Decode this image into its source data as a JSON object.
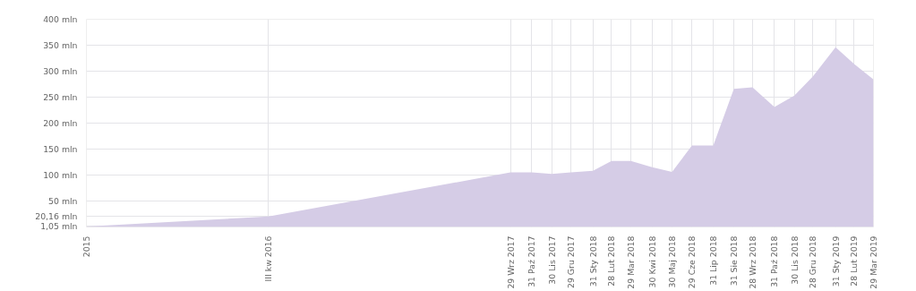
{
  "chart_data": {
    "type": "area",
    "x": [
      "2015-12-31",
      "2016-09-30",
      "2017-09-29",
      "2017-10-31",
      "2017-11-30",
      "2017-12-29",
      "2018-01-31",
      "2018-02-28",
      "2018-03-29",
      "2018-04-30",
      "2018-05-30",
      "2018-06-29",
      "2018-07-31",
      "2018-08-31",
      "2018-09-28",
      "2018-10-31",
      "2018-11-30",
      "2018-12-28",
      "2019-01-31",
      "2019-02-28",
      "2019-03-29"
    ],
    "series": [
      {
        "color": "#d5cce6",
        "values": [
          1.05,
          20.16,
          105,
          105,
          102,
          105,
          108,
          127,
          127,
          115,
          106,
          157,
          157,
          266,
          269,
          231,
          253,
          290,
          346,
          314,
          284
        ]
      }
    ],
    "xlim": [
      "2015-12-31",
      "2019-03-29"
    ],
    "xticks": [
      {
        "value": "2015-12-31",
        "label": "2015"
      },
      {
        "value": "2016-09-30",
        "label": "III kw 2016"
      },
      {
        "value": "2017-09-29",
        "label": "29 Wrz 2017"
      },
      {
        "value": "2017-10-31",
        "label": "31 Paź 2017"
      },
      {
        "value": "2017-11-30",
        "label": "30 Lis 2017"
      },
      {
        "value": "2017-12-29",
        "label": "29 Gru 2017"
      },
      {
        "value": "2018-01-31",
        "label": "31 Sty 2018"
      },
      {
        "value": "2018-02-28",
        "label": "28 Lut 2018"
      },
      {
        "value": "2018-03-29",
        "label": "29 Mar 2018"
      },
      {
        "value": "2018-04-30",
        "label": "30 Kwi 2018"
      },
      {
        "value": "2018-05-30",
        "label": "30 Maj 2018"
      },
      {
        "value": "2018-06-29",
        "label": "29 Cze 2018"
      },
      {
        "value": "2018-07-31",
        "label": "31 Lip 2018"
      },
      {
        "value": "2018-08-31",
        "label": "31 Sie 2018"
      },
      {
        "value": "2018-09-28",
        "label": "28 Wrz 2018"
      },
      {
        "value": "2018-10-31",
        "label": "31 Paź 2018"
      },
      {
        "value": "2018-11-30",
        "label": "30 Lis 2018"
      },
      {
        "value": "2018-12-28",
        "label": "28 Gru 2018"
      },
      {
        "value": "2019-01-31",
        "label": "31 Sty 2019"
      },
      {
        "value": "2019-02-28",
        "label": "28 Lut 2019"
      },
      {
        "value": "2019-03-29",
        "label": "29 Mar 2019"
      }
    ],
    "ylim": [
      0,
      400
    ],
    "yticks": [
      {
        "value": 1.05,
        "label": "1,05 mln"
      },
      {
        "value": 20.16,
        "label": "20,16 mln"
      },
      {
        "value": 50,
        "label": "50 mln"
      },
      {
        "value": 100,
        "label": "100 mln"
      },
      {
        "value": 150,
        "label": "150 mln"
      },
      {
        "value": 200,
        "label": "200 mln"
      },
      {
        "value": 250,
        "label": "250 mln"
      },
      {
        "value": 300,
        "label": "300 mln"
      },
      {
        "value": 350,
        "label": "350 mln"
      },
      {
        "value": 400,
        "label": "400 mln"
      }
    ],
    "grid": true
  }
}
